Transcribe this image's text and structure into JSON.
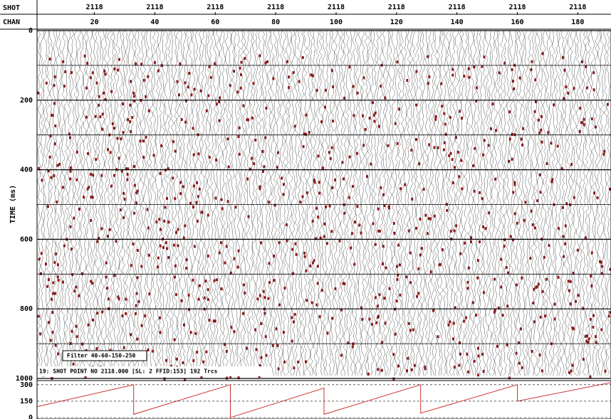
{
  "chart_data": {
    "type": "seismic",
    "header_labels": [
      "SHOT",
      "CHAN"
    ],
    "shot": "2118",
    "x_label_count": 9,
    "x": [
      20,
      40,
      60,
      80,
      100,
      120,
      140,
      160,
      180
    ],
    "xlim": [
      1,
      191
    ],
    "ylabel": "TIME (ms)",
    "ylim": [
      0,
      1000
    ],
    "yticks": [
      0,
      200,
      400,
      600,
      800,
      1000
    ],
    "minor_grid": [
      100,
      300,
      500,
      700,
      900
    ],
    "annotations": [
      "Filter 40-60-150-250",
      "19: SHOT POINT NO 2118.000 [SL: 2 FFID:153] 192 Trcs"
    ],
    "panel": {
      "type": "line",
      "color": "#cc3333",
      "x": [
        1,
        33,
        33,
        65,
        65,
        96,
        96,
        128,
        128,
        160,
        160,
        191
      ],
      "values": [
        100,
        300,
        30,
        300,
        0,
        270,
        30,
        300,
        40,
        300,
        150,
        320
      ],
      "ylim": [
        0,
        325
      ],
      "yticks": [
        0,
        150,
        300
      ]
    }
  }
}
